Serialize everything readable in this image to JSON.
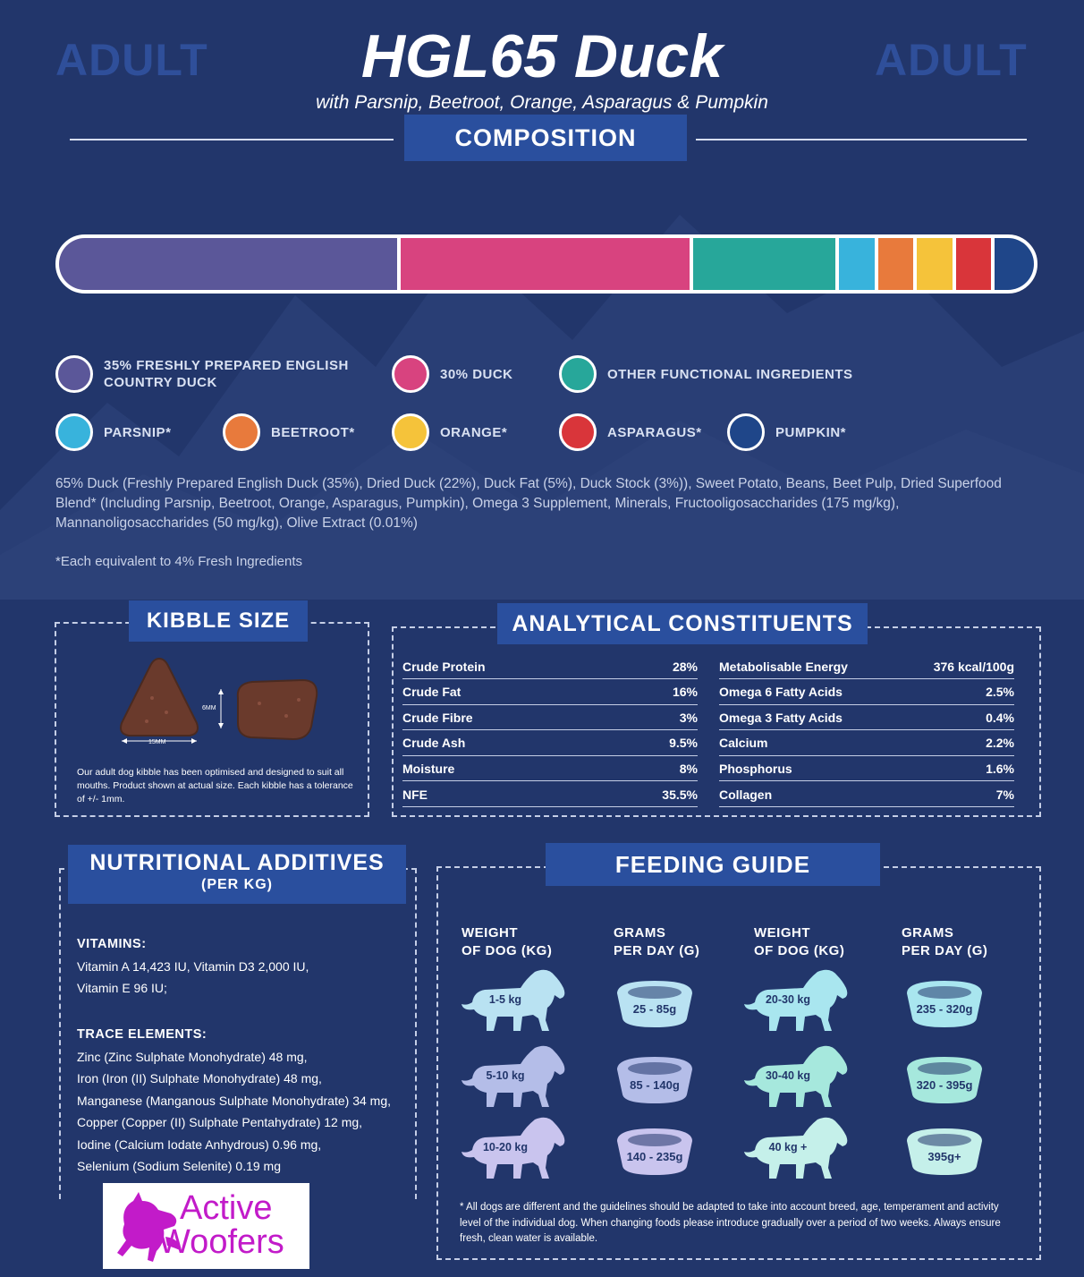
{
  "header": {
    "side_left": "ADULT",
    "side_right": "ADULT",
    "title": "HGL65 Duck",
    "subtitle": "with Parsnip, Beetroot, Orange, Asparagus & Pumpkin"
  },
  "composition": {
    "heading": "COMPOSITION",
    "segments": [
      {
        "color": "#5b5799",
        "share": 35
      },
      {
        "color": "#d8437f",
        "share": 30
      },
      {
        "color": "#27a79a",
        "share": 15
      },
      {
        "color": "#38b3dc",
        "share": 4
      },
      {
        "color": "#e87a3c",
        "share": 4
      },
      {
        "color": "#f5c33a",
        "share": 4
      },
      {
        "color": "#d9353a",
        "share": 4
      },
      {
        "color": "#1f4689",
        "share": 4
      }
    ],
    "legend": [
      {
        "label": "35% FRESHLY PREPARED ENGLISH COUNTRY DUCK",
        "color": "#5b5799"
      },
      {
        "label": "30% DUCK",
        "color": "#d8437f"
      },
      {
        "label": "OTHER FUNCTIONAL INGREDIENTS",
        "color": "#27a79a"
      },
      {
        "label": "PARSNIP*",
        "color": "#38b3dc"
      },
      {
        "label": "BEETROOT*",
        "color": "#e87a3c"
      },
      {
        "label": "ORANGE*",
        "color": "#f5c33a"
      },
      {
        "label": "ASPARAGUS*",
        "color": "#d9353a"
      },
      {
        "label": "PUMPKIN*",
        "color": "#1f4689"
      }
    ],
    "ingredients": "65% Duck (Freshly Prepared English Duck (35%), Dried Duck (22%), Duck Fat (5%), Duck Stock (3%)), Sweet Potato, Beans, Beet Pulp, Dried Superfood Blend* (Including Parsnip, Beetroot, Orange, Asparagus, Pumpkin), Omega 3 Supplement, Minerals, Fructooligosaccharides (175 mg/kg), Mannanoligosaccharides (50 mg/kg), Olive Extract (0.01%)",
    "footnote": "*Each equivalent to 4% Fresh Ingredients"
  },
  "kibble": {
    "heading": "KIBBLE SIZE",
    "width_label": "15MM",
    "height_label": "6MM",
    "note": "Our adult dog kibble has been optimised and designed to suit all mouths. Product shown at actual size. Each kibble has a tolerance of +/- 1mm."
  },
  "analytical": {
    "heading": "ANALYTICAL CONSTITUENTS",
    "left": [
      {
        "name": "Crude Protein",
        "value": "28%"
      },
      {
        "name": "Crude Fat",
        "value": "16%"
      },
      {
        "name": "Crude Fibre",
        "value": "3%"
      },
      {
        "name": "Crude Ash",
        "value": "9.5%"
      },
      {
        "name": "Moisture",
        "value": "8%"
      },
      {
        "name": "NFE",
        "value": "35.5%"
      }
    ],
    "right": [
      {
        "name": "Metabolisable Energy",
        "value": "376 kcal/100g"
      },
      {
        "name": "Omega 6 Fatty Acids",
        "value": "2.5%"
      },
      {
        "name": "Omega 3 Fatty Acids",
        "value": "0.4%"
      },
      {
        "name": "Calcium",
        "value": "2.2%"
      },
      {
        "name": "Phosphorus",
        "value": "1.6%"
      },
      {
        "name": "Collagen",
        "value": "7%"
      }
    ]
  },
  "additives": {
    "heading": "NUTRITIONAL ADDITIVES",
    "subheading": "(PER KG)",
    "vitamins_title": "VITAMINS:",
    "vitamins": [
      "Vitamin A 14,423 IU, Vitamin D3 2,000 IU,",
      "Vitamin E 96 IU;"
    ],
    "trace_title": "TRACE ELEMENTS:",
    "trace": [
      "Zinc (Zinc Sulphate Monohydrate) 48 mg,",
      "Iron (Iron (II) Sulphate Monohydrate) 48 mg,",
      "Manganese (Manganous Sulphate Monohydrate) 34 mg,",
      "Copper (Copper (II) Sulphate Pentahydrate) 12 mg,",
      "Iodine (Calcium Iodate Anhydrous) 0.96 mg,",
      "Selenium (Sodium Selenite) 0.19 mg"
    ]
  },
  "feeding": {
    "heading": "FEEDING GUIDE",
    "col_weight_1": "WEIGHT",
    "col_weight_2": "OF DOG (KG)",
    "col_grams_1": "GRAMS",
    "col_grams_2": "PER DAY (G)",
    "rows": [
      {
        "w1": "1-5 kg",
        "g1": "25 - 85g",
        "w2": "20-30 kg",
        "g2": "235 - 320g"
      },
      {
        "w1": "5-10 kg",
        "g1": "85 - 140g",
        "w2": "30-40 kg",
        "g2": "320 - 395g"
      },
      {
        "w1": "10-20 kg",
        "g1": "140 - 235g",
        "w2": "40 kg +",
        "g2": "395g+"
      }
    ],
    "colors": [
      "#b9e2f2",
      "#b4bde8",
      "#c9c4ee",
      "#a9e6ef",
      "#a6e8dd",
      "#c5f0ea"
    ],
    "note": "* All dogs are different and the guidelines should be adapted to take into account breed, age, temperament and activity level of the individual dog. When changing foods please introduce gradually over a period of two weeks. Always ensure fresh, clean water is available."
  },
  "logo": {
    "text_1": "Active",
    "text_2": "Woofers",
    "color": "#c21bc9"
  }
}
